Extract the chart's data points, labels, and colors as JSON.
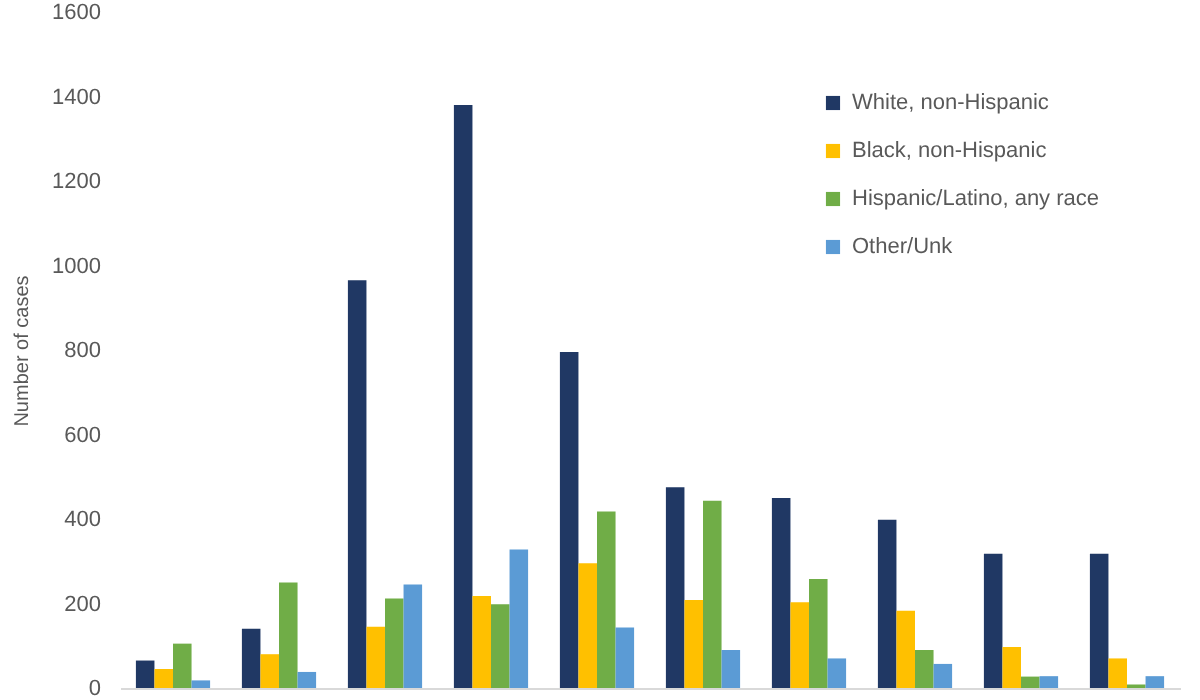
{
  "chart_data": {
    "type": "bar",
    "ylabel": "Number of cases",
    "categories": [
      null,
      null,
      null,
      null,
      null,
      null,
      null,
      null,
      null,
      null
    ],
    "series": [
      {
        "name": "White, non-Hispanic",
        "color": "#203864",
        "values": [
          65,
          140,
          965,
          1380,
          795,
          475,
          450,
          398,
          318,
          318
        ]
      },
      {
        "name": "Black, non-Hispanic",
        "color": "#ffc000",
        "values": [
          45,
          80,
          145,
          218,
          295,
          208,
          203,
          183,
          97,
          70
        ]
      },
      {
        "name": "Hispanic/Latino, any race",
        "color": "#70ad47",
        "values": [
          105,
          250,
          212,
          198,
          418,
          443,
          258,
          90,
          27,
          8
        ]
      },
      {
        "name": "Other/Unk",
        "color": "#5b9bd5",
        "values": [
          18,
          38,
          245,
          328,
          143,
          90,
          70,
          57,
          28,
          28
        ]
      }
    ],
    "ylim": [
      0,
      1600
    ],
    "yticks": [
      0,
      200,
      400,
      600,
      800,
      1000,
      1200,
      1400,
      1600
    ],
    "grid": false,
    "legend": "top right"
  }
}
